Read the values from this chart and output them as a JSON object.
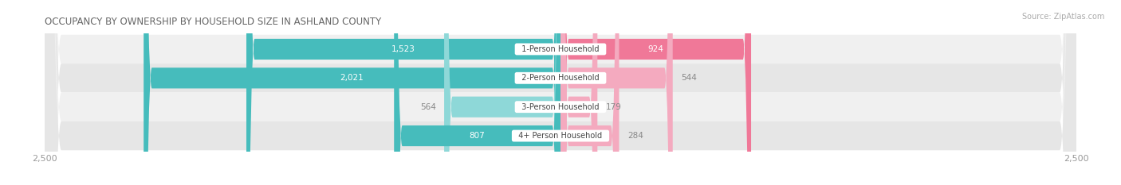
{
  "title": "OCCUPANCY BY OWNERSHIP BY HOUSEHOLD SIZE IN ASHLAND COUNTY",
  "source": "Source: ZipAtlas.com",
  "categories": [
    "1-Person Household",
    "2-Person Household",
    "3-Person Household",
    "4+ Person Household"
  ],
  "owner_values": [
    1523,
    2021,
    564,
    807
  ],
  "renter_values": [
    924,
    544,
    179,
    284
  ],
  "owner_color": "#46BCBC",
  "renter_color": "#F07898",
  "owner_color_light": "#8ED8D8",
  "renter_color_light": "#F4AABF",
  "row_bg_colors": [
    "#F0F0F0",
    "#E6E6E6",
    "#F0F0F0",
    "#E6E6E6"
  ],
  "max_value": 2500,
  "title_color": "#666666",
  "source_color": "#AAAAAA",
  "axis_label_color": "#999999",
  "center_label_color": "#444444",
  "white_label_color": "#FFFFFF",
  "dark_label_color": "#888888",
  "figsize": [
    14.06,
    2.33
  ],
  "dpi": 100
}
